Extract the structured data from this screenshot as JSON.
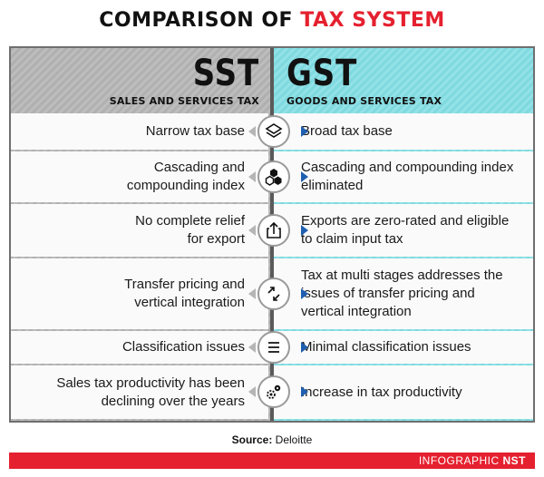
{
  "title": {
    "prefix": "COMPARISON OF ",
    "accent": "TAX SYSTEM"
  },
  "colors": {
    "accent": "#e5202f",
    "gst_bg": "#8ddee3",
    "sst_bg": "#b8b8b8",
    "arrow_blue": "#1f5fb0"
  },
  "left_column": {
    "abbr": "SST",
    "full": "SALES AND SERVICES TAX"
  },
  "right_column": {
    "abbr": "GST",
    "full": "GOODS AND SERVICES TAX"
  },
  "rows": [
    {
      "icon": "layers-icon",
      "sst": "Narrow tax base",
      "gst": "Broad tax base"
    },
    {
      "icon": "hexagons-icon",
      "sst": "Cascading and compounding index",
      "gst": "Cascading and compounding index eliminated"
    },
    {
      "icon": "export-icon",
      "sst": "No complete relief for export",
      "gst": "Exports are zero-rated and eligible to claim input tax"
    },
    {
      "icon": "transfer-arrows-icon",
      "sst": "Transfer pricing and vertical integration",
      "gst": "Tax at multi stages addresses the issues of transfer pricing and vertical integration"
    },
    {
      "icon": "list-icon",
      "sst": "Classification issues",
      "gst": "Minimal classification issues"
    },
    {
      "icon": "gears-icon",
      "sst": "Sales tax productivity has been declining over the years",
      "gst": "Increase in tax productivity"
    }
  ],
  "source": {
    "label": "Source:",
    "value": "Deloitte"
  },
  "footer": {
    "prefix": "INFOGRAPHIC ",
    "brand": "NST"
  }
}
